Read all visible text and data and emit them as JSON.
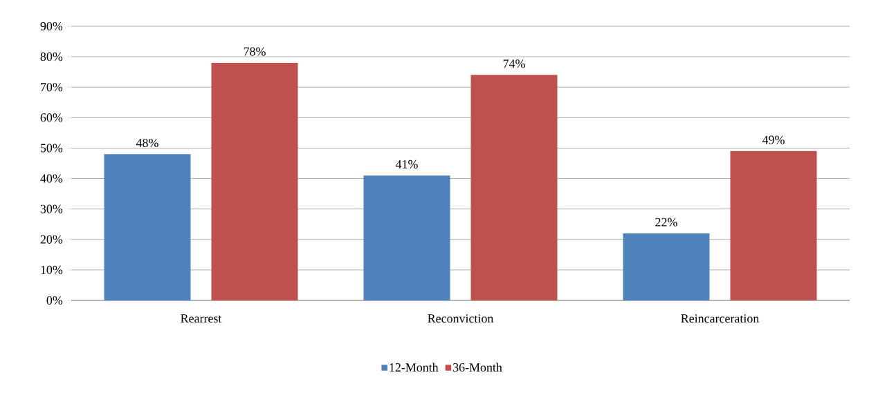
{
  "chart_data": {
    "type": "bar",
    "categories": [
      "Rearrest",
      "Reconviction",
      "Reincarceration"
    ],
    "series": [
      {
        "name": "12-Month",
        "color": "#4f81bd",
        "values": [
          48,
          41,
          22
        ],
        "value_labels": [
          "48%",
          "41%",
          "22%"
        ]
      },
      {
        "name": "36-Month",
        "color": "#c0504d",
        "values": [
          78,
          74,
          49
        ],
        "value_labels": [
          "78%",
          "74%",
          "49%"
        ]
      }
    ],
    "ylim": [
      0,
      90
    ],
    "yticks": [
      {
        "value": 0,
        "label": "0%"
      },
      {
        "value": 10,
        "label": "10%"
      },
      {
        "value": 20,
        "label": "20%"
      },
      {
        "value": 30,
        "label": "30%"
      },
      {
        "value": 40,
        "label": "40%"
      },
      {
        "value": 50,
        "label": "50%"
      },
      {
        "value": 60,
        "label": "60%"
      },
      {
        "value": 70,
        "label": "70%"
      },
      {
        "value": 80,
        "label": "80%"
      },
      {
        "value": 90,
        "label": "90%"
      }
    ],
    "grid": "y",
    "legend": "bottom"
  }
}
